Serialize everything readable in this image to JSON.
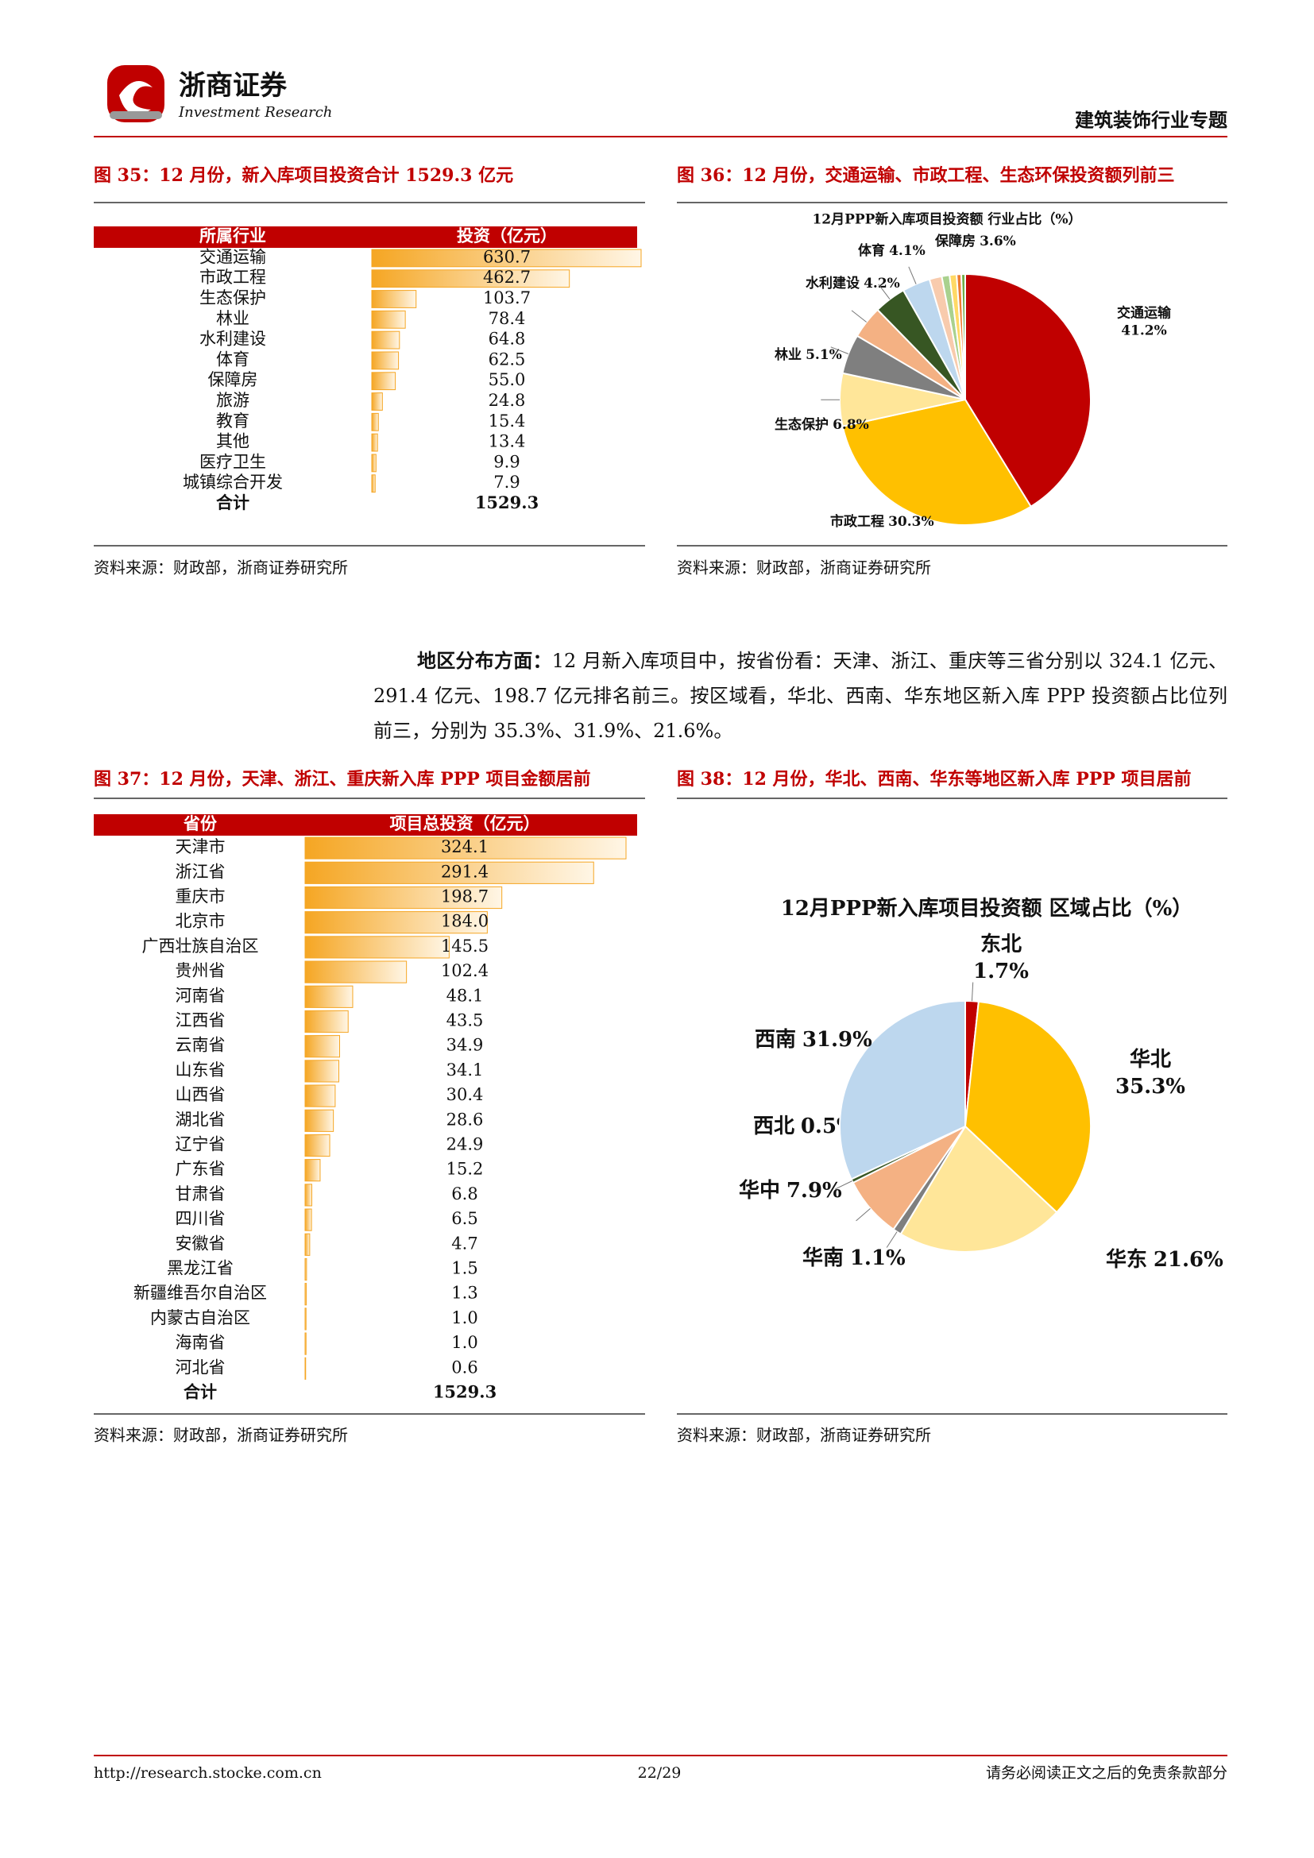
{
  "header": {
    "company": "浙商证券",
    "company_en": "Investment Research",
    "report": "建筑装饰行业专题"
  },
  "paragraph": {
    "lead": "地区分布方面：",
    "text": "12 月新入库项目中，按省份看：天津、浙江、重庆等三省分别以 324.1 亿元、291.4 亿元、198.7 亿元排名前三。按区域看，华北、西南、华东地区新入库 PPP 投资额占比位列前三，分别为 35.3%、31.9%、21.6%。"
  },
  "chart_data": [
    {
      "type": "bar",
      "title": "图 35：12 月份，新入库项目投资合计 1529.3 亿元",
      "headers": [
        "所属行业",
        "投资（亿元）"
      ],
      "categories": [
        "交通运输",
        "市政工程",
        "生态保护",
        "林业",
        "水利建设",
        "体育",
        "保障房",
        "旅游",
        "教育",
        "其他",
        "医疗卫生",
        "城镇综合开发"
      ],
      "values": [
        630.7,
        462.7,
        103.7,
        78.4,
        64.8,
        62.5,
        55.0,
        24.8,
        15.4,
        13.4,
        9.9,
        7.9
      ],
      "value_labels": [
        "630.7",
        "462.7",
        "103.7",
        "78.4",
        "64.8",
        "62.5",
        "55.0",
        "24.8",
        "15.4",
        "13.4",
        "9.9",
        "7.9"
      ],
      "total_label": "合计",
      "total": 1529.3,
      "xlim": [
        0,
        630.7
      ],
      "color": "#f5a623",
      "source": "资料来源：财政部，浙商证券研究所"
    },
    {
      "type": "pie",
      "title": "图 36：12 月份，交通运输、市政工程、生态环保投资额列前三",
      "subtitle": "12月PPP新入库项目投资额  行业占比（%）",
      "categories": [
        "交通运输",
        "市政工程",
        "生态保护",
        "林业",
        "水利建设",
        "体育",
        "保障房",
        null,
        null,
        null,
        null,
        null
      ],
      "values": [
        41.2,
        30.3,
        6.8,
        5.1,
        4.2,
        4.1,
        3.6,
        1.6,
        1.0,
        0.9,
        0.6,
        0.5
      ],
      "value_labels": [
        "41.2%",
        "30.3%",
        "6.8%",
        "5.1%",
        "4.2%",
        "4.1%",
        "3.6%",
        null,
        null,
        null,
        null,
        null
      ],
      "colors": [
        "#c00000",
        "#ffc000",
        "#ffe699",
        "#7f7f7f",
        "#f4b183",
        "#375623",
        "#bdd7ee",
        "#f8cbad",
        "#a9d18e",
        "#ffd966",
        "#ed7d31",
        "#70ad47"
      ],
      "source": "资料来源：财政部，浙商证券研究所"
    },
    {
      "type": "bar",
      "title": "图 37：12 月份，天津、浙江、重庆新入库 PPP 项目金额居前",
      "headers": [
        "省份",
        "项目总投资（亿元）"
      ],
      "categories": [
        "天津市",
        "浙江省",
        "重庆市",
        "北京市",
        "广西壮族自治区",
        "贵州省",
        "河南省",
        "江西省",
        "云南省",
        "山东省",
        "山西省",
        "湖北省",
        "辽宁省",
        "广东省",
        "甘肃省",
        "四川省",
        "安徽省",
        "黑龙江省",
        "新疆维吾尔自治区",
        "内蒙古自治区",
        "海南省",
        "河北省"
      ],
      "values": [
        324.1,
        291.4,
        198.7,
        184.0,
        145.5,
        102.4,
        48.1,
        43.5,
        34.9,
        34.1,
        30.4,
        28.6,
        24.9,
        15.2,
        6.8,
        6.5,
        4.7,
        1.5,
        1.3,
        1.0,
        1.0,
        0.6
      ],
      "value_labels": [
        "324.1",
        "291.4",
        "198.7",
        "184.0",
        "145.5",
        "102.4",
        "48.1",
        "43.5",
        "34.9",
        "34.1",
        "30.4",
        "28.6",
        "24.9",
        "15.2",
        "6.8",
        "6.5",
        "4.7",
        "1.5",
        "1.3",
        "1.0",
        "1.0",
        "0.6"
      ],
      "total_label": "合计",
      "total": 1529.3,
      "xlim": [
        0,
        324.1
      ],
      "color": "#f5a623",
      "source": "资料来源：财政部，浙商证券研究所"
    },
    {
      "type": "pie",
      "title": "图 38：12 月份，华北、西南、华东等地区新入库 PPP 项目居前",
      "subtitle": "12月PPP新入库项目投资额 区域占比（%）",
      "categories": [
        "东北",
        "华北",
        "华东",
        "华南",
        "华中",
        "西北",
        "西南"
      ],
      "values": [
        1.7,
        35.3,
        21.6,
        1.1,
        7.9,
        0.5,
        31.9
      ],
      "value_labels": [
        "1.7%",
        "35.3%",
        "21.6%",
        "1.1%",
        "7.9%",
        "0.5%",
        "31.9%"
      ],
      "colors": [
        "#c00000",
        "#ffc000",
        "#ffe699",
        "#7f7f7f",
        "#f4b183",
        "#375623",
        "#bdd7ee"
      ],
      "source": "资料来源：财政部，浙商证券研究所"
    }
  ],
  "footer": {
    "url": "http://research.stocke.com.cn",
    "page": "22/29",
    "disclaimer": "请务必阅读正文之后的免责条款部分"
  }
}
